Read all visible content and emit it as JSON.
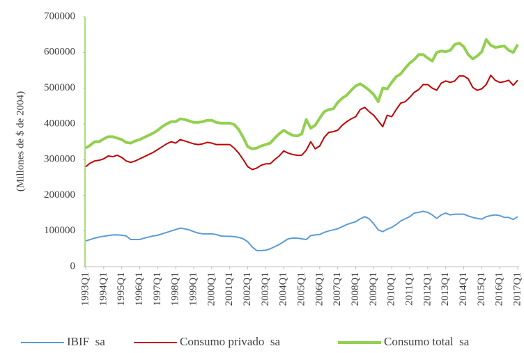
{
  "chart_data": {
    "type": "line",
    "y_label": "(Millones de $ de 2004)",
    "categories": [
      "1993Q1",
      null,
      null,
      null,
      "1994Q1",
      null,
      null,
      null,
      "1995Q1",
      null,
      null,
      null,
      "1996Q1",
      null,
      null,
      null,
      "1997Q1",
      null,
      null,
      null,
      "1998Q1",
      null,
      null,
      null,
      "1999Q1",
      null,
      null,
      null,
      "2000Q1",
      null,
      null,
      null,
      "2001Q1",
      null,
      null,
      null,
      "2002Q1",
      null,
      null,
      null,
      "2003Q1",
      null,
      null,
      null,
      "2004Q1",
      null,
      null,
      null,
      "2005Q1",
      null,
      null,
      null,
      "2006Q1",
      null,
      null,
      null,
      "2007Q1",
      null,
      null,
      null,
      "2008Q1",
      null,
      null,
      null,
      "2009Q1",
      null,
      null,
      null,
      "2010Q1",
      null,
      null,
      null,
      "2011Q1",
      null,
      null,
      null,
      "2012Q1",
      null,
      null,
      null,
      "2013Q1",
      null,
      null,
      null,
      "2014Q1",
      null,
      null,
      null,
      "2015Q1",
      null,
      null,
      null,
      "2016Q1",
      null,
      null,
      null,
      "2017Q1"
    ],
    "series": [
      {
        "name": "IBIF  sa",
        "color": "#5b9bd5",
        "width": 2,
        "values": [
          72000,
          76000,
          80000,
          83000,
          85000,
          87000,
          89000,
          89000,
          88000,
          86000,
          76000,
          76000,
          76000,
          80000,
          83000,
          86000,
          88000,
          92000,
          96000,
          100000,
          104000,
          108000,
          106000,
          103000,
          98000,
          94000,
          92000,
          92000,
          92000,
          90000,
          86000,
          85000,
          85000,
          84000,
          82000,
          78000,
          70000,
          55000,
          45000,
          45000,
          46000,
          50000,
          56000,
          62000,
          70000,
          78000,
          80000,
          80000,
          78000,
          76000,
          87000,
          89000,
          90000,
          96000,
          100000,
          103000,
          106000,
          112000,
          118000,
          122000,
          126000,
          134000,
          140000,
          134000,
          120000,
          103000,
          98000,
          105000,
          110000,
          118000,
          128000,
          134000,
          140000,
          150000,
          152000,
          155000,
          152000,
          145000,
          135000,
          145000,
          150000,
          145000,
          147000,
          147000,
          147000,
          142000,
          138000,
          135000,
          133000,
          140000,
          143000,
          145000,
          143000,
          138000,
          138000,
          132000,
          140000
        ]
      },
      {
        "name": "Consumo privado  sa",
        "color": "#c00000",
        "width": 2,
        "values": [
          280000,
          290000,
          296000,
          298000,
          302000,
          310000,
          308000,
          312000,
          306000,
          296000,
          292000,
          296000,
          302000,
          308000,
          314000,
          320000,
          328000,
          336000,
          344000,
          350000,
          346000,
          356000,
          352000,
          348000,
          344000,
          342000,
          344000,
          348000,
          346000,
          342000,
          342000,
          342000,
          342000,
          332000,
          318000,
          300000,
          280000,
          272000,
          276000,
          284000,
          288000,
          288000,
          300000,
          310000,
          324000,
          318000,
          314000,
          312000,
          312000,
          326000,
          350000,
          330000,
          338000,
          362000,
          376000,
          378000,
          382000,
          396000,
          406000,
          414000,
          420000,
          440000,
          446000,
          434000,
          424000,
          408000,
          392000,
          424000,
          420000,
          440000,
          458000,
          462000,
          474000,
          488000,
          496000,
          510000,
          510000,
          500000,
          494000,
          514000,
          520000,
          516000,
          520000,
          534000,
          534000,
          526000,
          502000,
          494000,
          498000,
          510000,
          536000,
          522000,
          516000,
          518000,
          522000,
          508000,
          522000
        ]
      },
      {
        "name": "Consumo total  sa",
        "color": "#92d050",
        "width": 4,
        "values": [
          332000,
          340000,
          350000,
          350000,
          358000,
          364000,
          364000,
          360000,
          356000,
          348000,
          346000,
          352000,
          356000,
          362000,
          368000,
          374000,
          382000,
          392000,
          400000,
          406000,
          406000,
          414000,
          412000,
          408000,
          404000,
          404000,
          406000,
          410000,
          410000,
          404000,
          402000,
          402000,
          402000,
          398000,
          384000,
          362000,
          336000,
          330000,
          332000,
          338000,
          342000,
          346000,
          360000,
          372000,
          382000,
          374000,
          368000,
          366000,
          372000,
          412000,
          388000,
          396000,
          416000,
          434000,
          440000,
          442000,
          460000,
          472000,
          480000,
          494000,
          506000,
          512000,
          504000,
          494000,
          482000,
          462000,
          500000,
          498000,
          516000,
          532000,
          540000,
          556000,
          570000,
          580000,
          594000,
          594000,
          584000,
          576000,
          600000,
          604000,
          602000,
          606000,
          622000,
          626000,
          616000,
          594000,
          582000,
          590000,
          602000,
          636000,
          620000,
          614000,
          616000,
          618000,
          606000,
          600000,
          622000
        ]
      }
    ],
    "ylim": [
      0,
      700000
    ],
    "yticks": [
      0,
      100000,
      200000,
      300000,
      400000,
      500000,
      600000,
      700000
    ]
  }
}
